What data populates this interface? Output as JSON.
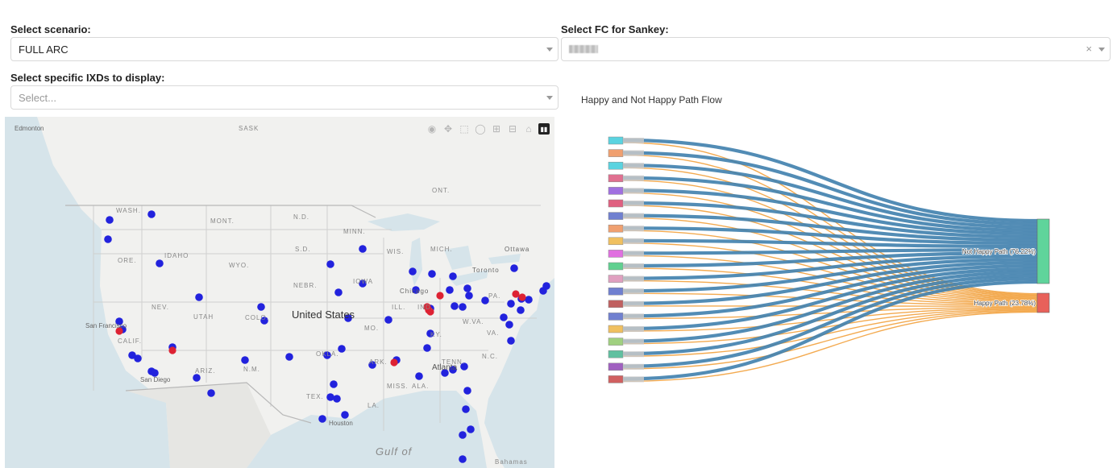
{
  "scenario": {
    "label": "Select scenario:",
    "value": "FULL ARC"
  },
  "fc_select": {
    "label": "Select FC for Sankey:",
    "clear_icon": "×"
  },
  "ixd_select": {
    "label": "Select specific IXDs to display:",
    "placeholder": "Select..."
  },
  "map": {
    "place_labels": [
      "Edmonton",
      "SASK",
      "ONT.",
      "WASH.",
      "MONT.",
      "N.D.",
      "MINN.",
      "Ottawa",
      "ORE.",
      "IDAHO",
      "WYO.",
      "S.D.",
      "WIS.",
      "MICH.",
      "Toronto",
      "NEBR.",
      "IOWA",
      "Chicago",
      "NEV.",
      "UTAH",
      "COLO.",
      "ILL.",
      "IND.",
      "PA.",
      "San Francisco",
      "CALIF.",
      "MO.",
      "KY.",
      "W.VA.",
      "VA.",
      "OKLA.",
      "ARK.",
      "N.C.",
      "ARIZ.",
      "N.M.",
      "TENN.",
      "Atlanta",
      "MISS.",
      "ALA.",
      "San Diego",
      "TEX.",
      "LA.",
      "Houston",
      "Bahamas"
    ],
    "country_label": "United States",
    "sea_label": "Gulf of",
    "colors": {
      "blue_point": "#2222dd",
      "red_point": "#dd2233",
      "land": "#f1f1ef",
      "water": "#d6e4ea"
    },
    "modebar_icons": [
      "camera-icon",
      "pan-icon",
      "box-select-icon",
      "lasso-icon",
      "zoom-in-icon",
      "zoom-out-icon",
      "home-icon",
      "plotly-logo-icon"
    ]
  },
  "sankey": {
    "title": "Happy and Not Happy Path Flow",
    "targets": [
      {
        "label": "Not Happy Path (76.22%)",
        "color": "#5fd49b"
      },
      {
        "label": "Happy Path (23.78%)",
        "color": "#e8615a"
      }
    ],
    "link_colors": {
      "not_happy": "#3f7fad",
      "happy": "#f2a547"
    },
    "source_colors": [
      "#5ad3e0",
      "#f0a070",
      "#5ad3e0",
      "#e07090",
      "#a070e0",
      "#e06080",
      "#7080d0",
      "#f0a070",
      "#f0c060",
      "#e070e0",
      "#60d090",
      "#e0a0c0",
      "#7080d0",
      "#c06060",
      "#7080d0",
      "#f0c060",
      "#a0d080",
      "#60c0a0",
      "#a060c0",
      "#d06060"
    ]
  }
}
